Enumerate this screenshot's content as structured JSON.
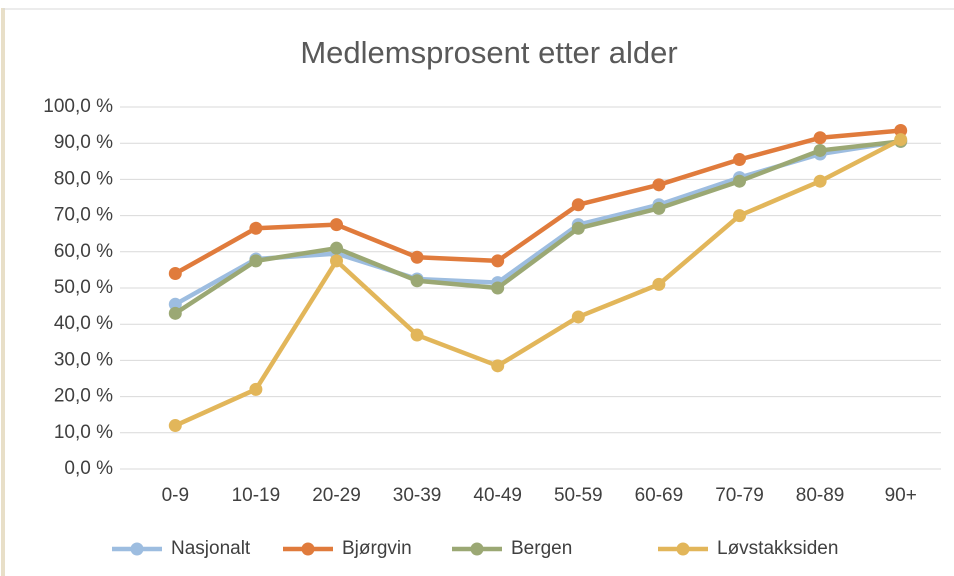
{
  "chart_data": {
    "type": "line",
    "title": "Medlemsprosent etter alder",
    "categories": [
      "0-9",
      "10-19",
      "20-29",
      "30-39",
      "40-49",
      "50-59",
      "60-69",
      "70-79",
      "80-89",
      "90+"
    ],
    "series": [
      {
        "name": "Nasjonalt",
        "color": "#9dbde0",
        "values": [
          45.5,
          58,
          59.5,
          52.5,
          51.5,
          67.5,
          73,
          80.5,
          87,
          90.5
        ]
      },
      {
        "name": "Bjørgvin",
        "color": "#e07b3c",
        "values": [
          54,
          66.5,
          67.5,
          58.5,
          57.5,
          73,
          78.5,
          85.5,
          91.5,
          93.5
        ]
      },
      {
        "name": "Bergen",
        "color": "#9ba874",
        "values": [
          43,
          57.5,
          61,
          52,
          50,
          66.5,
          72,
          79.5,
          88,
          90.5
        ]
      },
      {
        "name": "Løvstakksiden",
        "color": "#e2b65a",
        "values": [
          12,
          22,
          57.5,
          37,
          28.5,
          42,
          51,
          70,
          79.5,
          91
        ]
      }
    ],
    "ylim": [
      0,
      100
    ],
    "yticks": [
      {
        "value": 0,
        "label": "0,0 %"
      },
      {
        "value": 10,
        "label": "10,0 %"
      },
      {
        "value": 20,
        "label": "20,0 %"
      },
      {
        "value": 30,
        "label": "30,0 %"
      },
      {
        "value": 40,
        "label": "40,0 %"
      },
      {
        "value": 50,
        "label": "50,0 %"
      },
      {
        "value": 60,
        "label": "60,0 %"
      },
      {
        "value": 70,
        "label": "70,0 %"
      },
      {
        "value": 80,
        "label": "80,0 %"
      },
      {
        "value": 90,
        "label": "90,0 %"
      },
      {
        "value": 100,
        "label": "100,0 %"
      }
    ],
    "grid": true,
    "legend": "bottom"
  }
}
